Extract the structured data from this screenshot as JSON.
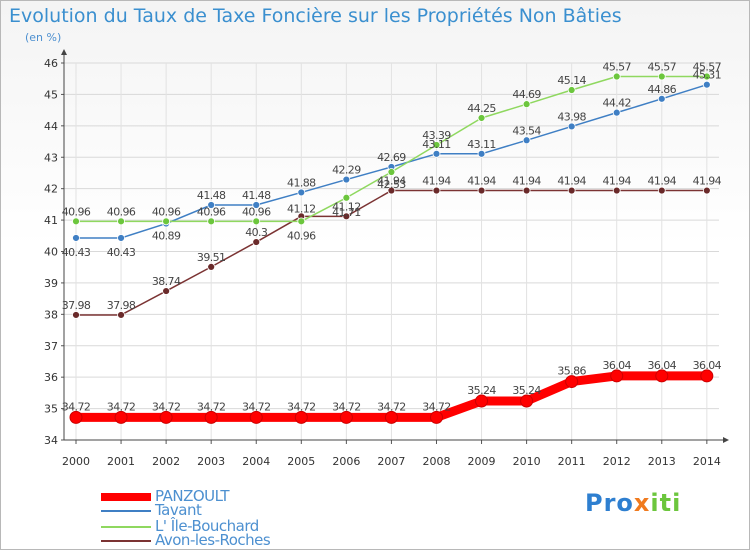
{
  "chart_data": {
    "type": "line",
    "title": "Evolution du Taux de Taxe Foncière sur les Propriétés Non Bâties",
    "ylabel": "(en %)",
    "xlabel": "",
    "categories": [
      "2000",
      "2001",
      "2002",
      "2003",
      "2004",
      "2005",
      "2006",
      "2007",
      "2008",
      "2009",
      "2010",
      "2011",
      "2012",
      "2013",
      "2014"
    ],
    "ylim": [
      34,
      46
    ],
    "yticks": [
      "34",
      "35",
      "36",
      "37",
      "38",
      "39",
      "40",
      "41",
      "42",
      "43",
      "44",
      "45",
      "46"
    ],
    "series": [
      {
        "name": "PANZOULT",
        "color": "#ff0000",
        "values": [
          34.72,
          34.72,
          34.72,
          34.72,
          34.72,
          34.72,
          34.72,
          34.72,
          34.72,
          35.24,
          35.24,
          35.86,
          36.04,
          36.04,
          36.04
        ],
        "labels": [
          "34.72",
          "34.72",
          "34.72",
          "34.72",
          "34.72",
          "34.72",
          "34.72",
          "34.72",
          "34.72",
          "35.24",
          "35.24",
          "35.86",
          "36.04",
          "36.04",
          "36.04"
        ]
      },
      {
        "name": "Tavant",
        "color": "#3f7fc4",
        "marker": "#3f7fc4",
        "values": [
          40.43,
          40.43,
          40.89,
          41.48,
          41.48,
          41.88,
          42.29,
          42.69,
          43.11,
          43.11,
          43.54,
          43.98,
          44.42,
          44.86,
          45.31
        ],
        "labels": [
          "40.43",
          "40.43",
          "40.89",
          "41.48",
          "41.48",
          "41.88",
          "42.29",
          "42.69",
          "43.11",
          "43.11",
          "43.54",
          "43.98",
          "44.42",
          "44.86",
          "45.31"
        ]
      },
      {
        "name": "L' Île-Bouchard",
        "color": "#8fd85f",
        "marker": "#6cc63d",
        "values": [
          40.96,
          40.96,
          40.96,
          40.96,
          40.96,
          40.96,
          41.71,
          42.53,
          43.39,
          44.25,
          44.69,
          45.14,
          45.57,
          45.57,
          45.57
        ],
        "labels": [
          "40.96",
          "40.96",
          "40.96",
          "40.96",
          "40.96",
          "40.96",
          "41.71",
          "42.53",
          "43.39",
          "44.25",
          "44.69",
          "45.14",
          "45.57",
          "45.57",
          "45.57"
        ]
      },
      {
        "name": "Avon-les-Roches",
        "color": "#7b3333",
        "marker": "#6a2a2a",
        "values": [
          37.98,
          37.98,
          38.74,
          39.51,
          40.3,
          41.12,
          41.12,
          41.94,
          41.94,
          41.94,
          41.94,
          41.94,
          41.94,
          41.94,
          41.94
        ],
        "labels": [
          "37.98",
          "37.98",
          "38.74",
          "39.51",
          "40.3",
          "41.12",
          "41.12",
          "41.94",
          "41.94",
          "41.94",
          "41.94",
          "41.94",
          "41.94",
          "41.94",
          "41.94"
        ]
      }
    ]
  },
  "branding": {
    "text_a": "Pro",
    "text_b": "x",
    "text_c": "iti"
  }
}
